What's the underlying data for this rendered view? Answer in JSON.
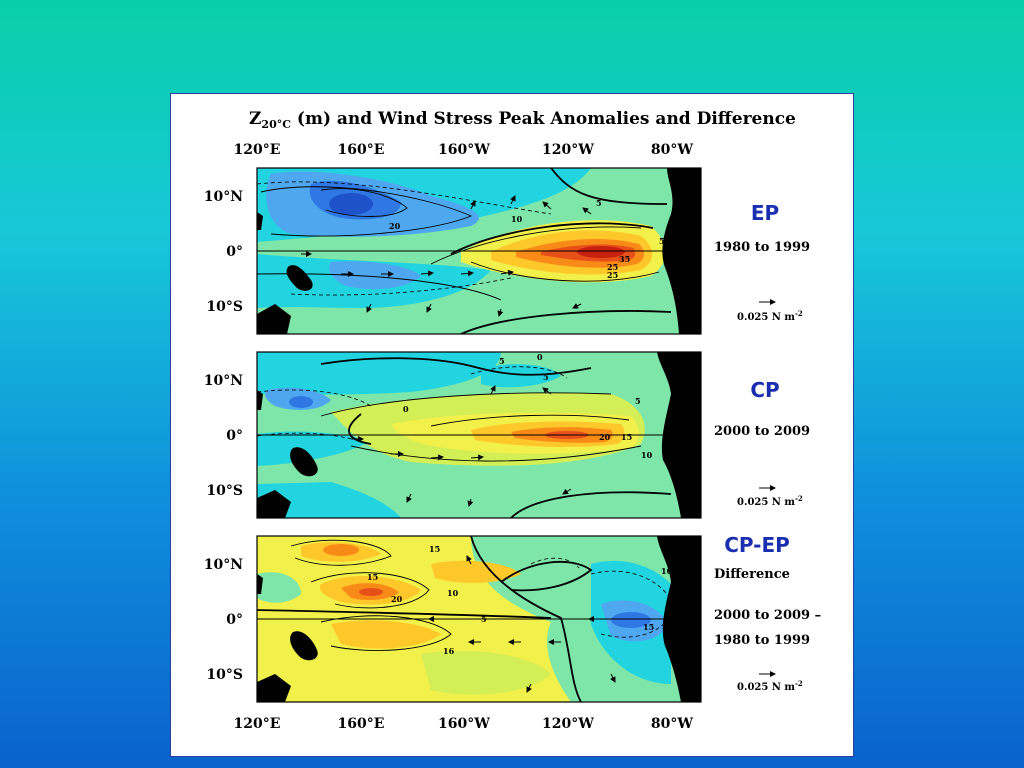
{
  "figure": {
    "title_main": "Z",
    "title_sub": "20°C",
    "title_rest": "(m) and Wind Stress Peak Anomalies and Difference",
    "lon_ticks": [
      "120°E",
      "160°E",
      "160°W",
      "120°W",
      "80°W"
    ],
    "lat_ticks": [
      "10°N",
      "0°",
      "10°S"
    ],
    "scale_label": "0.025 N m",
    "scale_exp": "-2"
  },
  "panels": [
    {
      "name": "EP",
      "lines": [
        "1980 to 1999"
      ],
      "contour_labels": [
        "20",
        "10",
        "5",
        "35",
        "25",
        "25",
        "5"
      ]
    },
    {
      "name": "CP",
      "lines": [
        "2000 to 2009"
      ],
      "contour_labels": [
        "5",
        "0",
        "5",
        "0",
        "20",
        "15",
        "10",
        "5"
      ]
    },
    {
      "name": "CP-EP",
      "lines": [
        "Difference",
        "2000 to 2009 –",
        "1980 to 1999"
      ],
      "contour_labels": [
        "15",
        "15",
        "20",
        "10",
        "5",
        "16",
        "15",
        "10"
      ]
    }
  ],
  "colors": {
    "background_top": "#08cfa8",
    "background_bottom": "#0a62cc",
    "panel_label": "#1a2fb0",
    "negative_strong": "#2b6fe0",
    "neutral": "#7ee6a8",
    "positive": "#f7f34a",
    "positive_strong": "#d62a10"
  }
}
